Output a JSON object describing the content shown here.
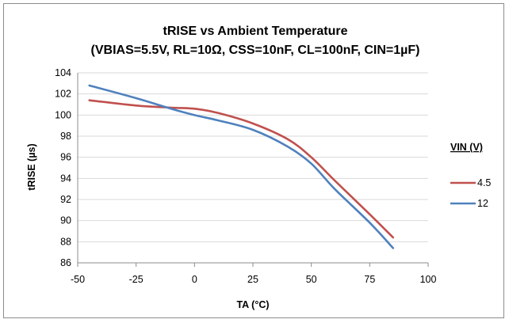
{
  "chart_data": {
    "type": "line",
    "title": "tRISE vs Ambient Temperature",
    "subtitle": "(VBIAS=5.5V, RL=10Ω, CSS=10nF, CL=100nF, CIN=1µF)",
    "xlabel": "TA (°C)",
    "ylabel": "tRISE (µs)",
    "xlim": [
      -50,
      100
    ],
    "ylim": [
      86,
      104
    ],
    "x_ticks": [
      -50,
      -25,
      0,
      25,
      50,
      75,
      100
    ],
    "y_ticks": [
      86,
      88,
      90,
      92,
      94,
      96,
      98,
      100,
      102,
      104
    ],
    "x_tick_labels": [
      "-50",
      "-25",
      "0",
      "25",
      "50",
      "75",
      "100"
    ],
    "y_tick_labels": [
      "86",
      "88",
      "90",
      "92",
      "94",
      "96",
      "98",
      "100",
      "102",
      "104"
    ],
    "grid": "horizontal",
    "legend_title": "VIN (V)",
    "legend_position": "right",
    "series": [
      {
        "name": "4.5",
        "color": "#c0504d",
        "x": [
          -45,
          -25,
          -10,
          0,
          10,
          25,
          40,
          50,
          60,
          75,
          85
        ],
        "y": [
          101.4,
          100.9,
          100.7,
          100.6,
          100.2,
          99.2,
          97.7,
          96.0,
          93.8,
          90.6,
          88.4
        ]
      },
      {
        "name": "12",
        "color": "#4f81bd",
        "x": [
          -45,
          -25,
          -10,
          0,
          10,
          25,
          40,
          50,
          60,
          75,
          85
        ],
        "y": [
          102.8,
          101.6,
          100.6,
          100.0,
          99.5,
          98.6,
          97.0,
          95.4,
          93.0,
          89.8,
          87.4
        ]
      }
    ]
  }
}
